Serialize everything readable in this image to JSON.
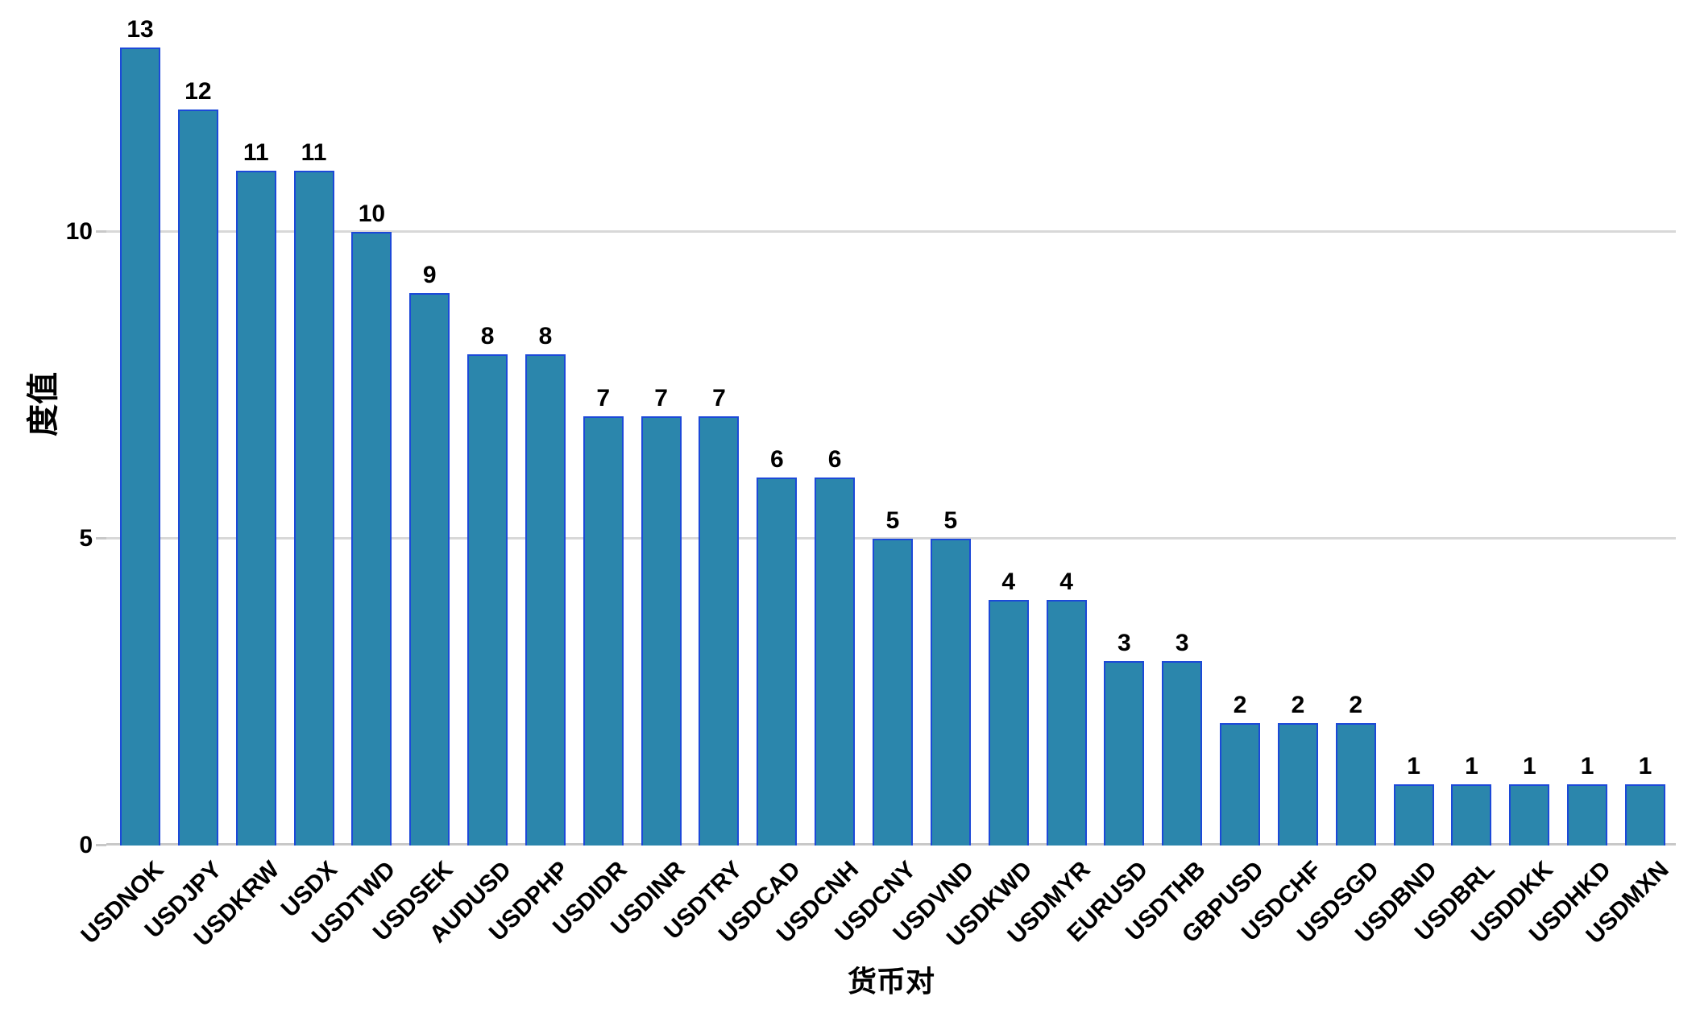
{
  "chart_data": {
    "type": "bar",
    "title": "",
    "xlabel": "货币对",
    "ylabel": "度值",
    "categories": [
      "USDNOK",
      "USDJPY",
      "USDKRW",
      "USDX",
      "USDTWD",
      "USDSEK",
      "AUDUSD",
      "USDPHP",
      "USDIDR",
      "USDINR",
      "USDTRY",
      "USDCAD",
      "USDCNH",
      "USDCNY",
      "USDVND",
      "USDKWD",
      "USDMYR",
      "EURUSD",
      "USDTHB",
      "GBPUSD",
      "USDCHF",
      "USDSGD",
      "USDBND",
      "USDBRL",
      "USDDKK",
      "USDHKD",
      "USDMXN"
    ],
    "values": [
      13,
      12,
      11,
      11,
      10,
      9,
      8,
      8,
      7,
      7,
      7,
      6,
      6,
      5,
      5,
      4,
      4,
      3,
      3,
      2,
      2,
      2,
      1,
      1,
      1,
      1,
      1
    ],
    "value_labels_shown": true,
    "ylim": [
      0,
      13.5
    ],
    "yticks": [
      "0",
      "5",
      "10"
    ],
    "ytick_values": [
      0,
      5,
      10
    ],
    "grid": "horizontal gridlines at y=5 and y=10, legend off",
    "legend": "none",
    "colors": {
      "bar_fill": "#2b86ac",
      "bar_edge": "#1c49d8",
      "gridline": "#d8d8d8",
      "axis_line": "#c8c8c8",
      "text": "#000000",
      "background": "#ffffff"
    }
  }
}
